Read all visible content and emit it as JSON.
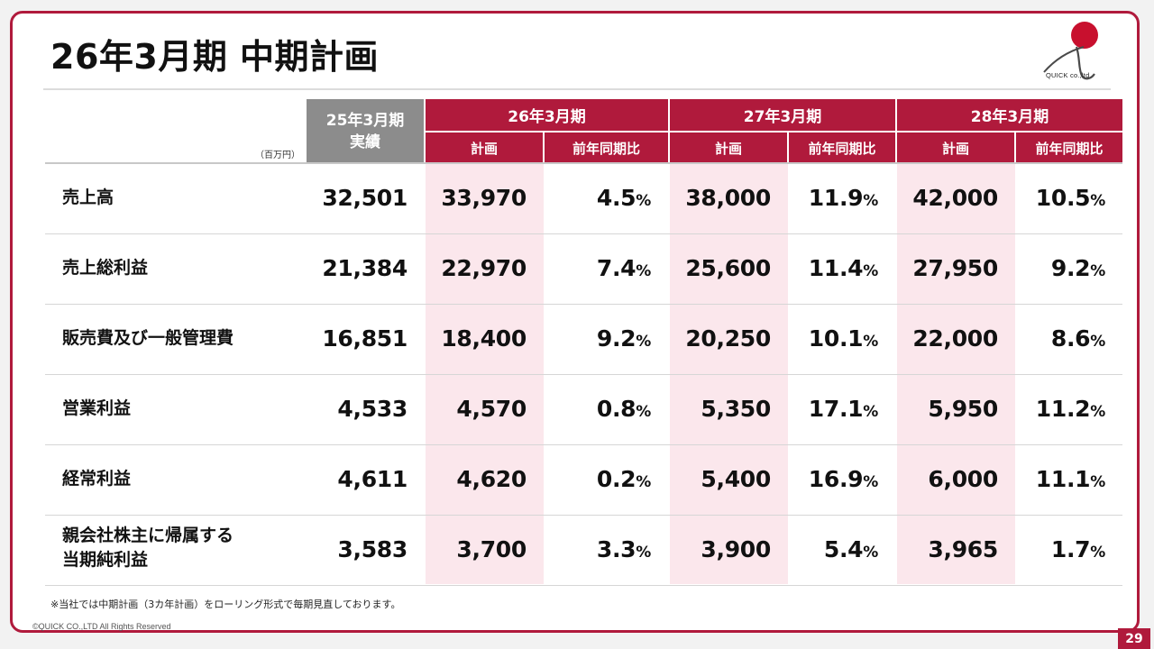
{
  "title": "26年3月期 中期計画",
  "logo": {
    "text": "QUICK co.,ltd"
  },
  "unit": "（百万円）",
  "header": {
    "actual": {
      "line1": "25年3月期",
      "line2": "実績"
    },
    "periods": [
      "26年3月期",
      "27年3月期",
      "28年3月期"
    ],
    "plan_label": "計画",
    "yoy_label": "前年同期比"
  },
  "table": {
    "rows": [
      {
        "label": "売上高",
        "actual": "32,501",
        "p1": "33,970",
        "y1": "4.5",
        "p2": "38,000",
        "y2": "11.9",
        "p3": "42,000",
        "y3": "10.5"
      },
      {
        "label": "売上総利益",
        "actual": "21,384",
        "p1": "22,970",
        "y1": "7.4",
        "p2": "25,600",
        "y2": "11.4",
        "p3": "27,950",
        "y3": "9.2"
      },
      {
        "label": "販売費及び一般管理費",
        "actual": "16,851",
        "p1": "18,400",
        "y1": "9.2",
        "p2": "20,250",
        "y2": "10.1",
        "p3": "22,000",
        "y3": "8.6"
      },
      {
        "label": "営業利益",
        "actual": "4,533",
        "p1": "4,570",
        "y1": "0.8",
        "p2": "5,350",
        "y2": "17.1",
        "p3": "5,950",
        "y3": "11.2"
      },
      {
        "label": "経常利益",
        "actual": "4,611",
        "p1": "4,620",
        "y1": "0.2",
        "p2": "5,400",
        "y2": "16.9",
        "p3": "6,000",
        "y3": "11.1"
      },
      {
        "label": "親会社株主に帰属する\n当期純利益",
        "actual": "3,583",
        "p1": "3,700",
        "y1": "3.3",
        "p2": "3,900",
        "y2": "5.4",
        "p3": "3,965",
        "y3": "1.7"
      }
    ],
    "pct_unit": "%"
  },
  "footnote": "※当社では中期計画（3カ年計画）をローリング形式で毎期見直しております。",
  "copyright": "©QUICK CO.,LTD All Rights Reserved",
  "page_number": "29",
  "colors": {
    "accent": "#b01a3c",
    "header_gray": "#8c8c8c",
    "highlight": "#fbe7ec"
  }
}
